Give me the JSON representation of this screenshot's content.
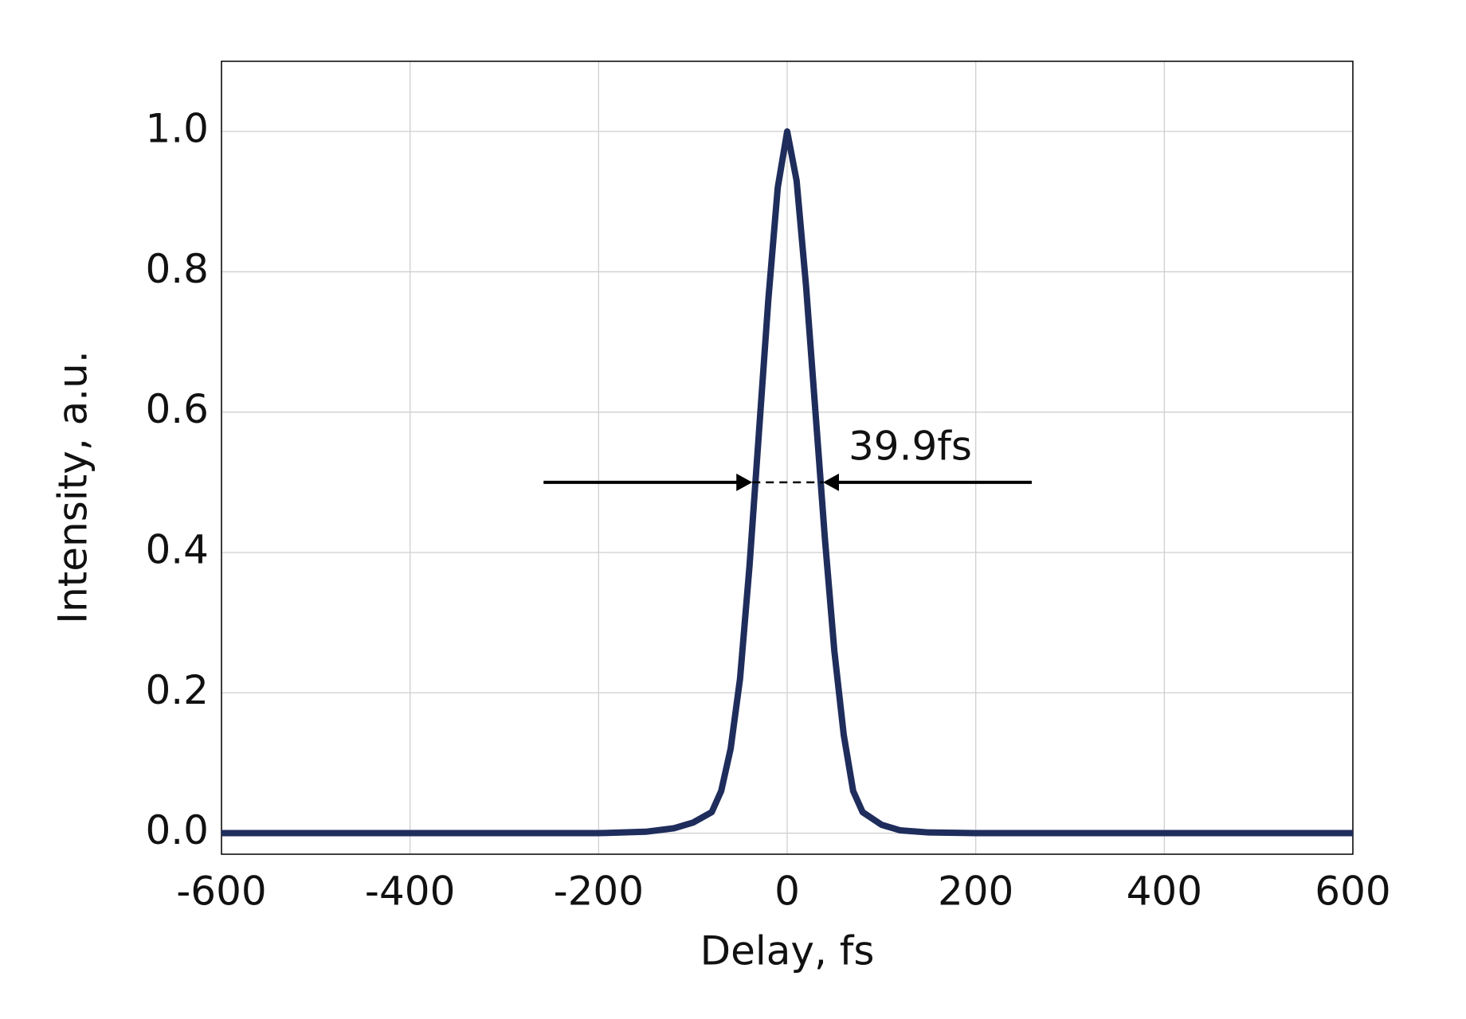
{
  "chart_data": {
    "type": "line",
    "x_label": "Delay, fs",
    "y_label": "Intensity, a.u.",
    "x": [
      -600,
      -500,
      -400,
      -300,
      -200,
      -150,
      -120,
      -100,
      -80,
      -70,
      -60,
      -50,
      -40,
      -30,
      -20,
      -10,
      0,
      10,
      20,
      30,
      40,
      50,
      60,
      70,
      80,
      100,
      120,
      150,
      200,
      300,
      400,
      500,
      600
    ],
    "series": [
      {
        "color": "#1f2d5c",
        "values": [
          0,
          0,
          0,
          0,
          0,
          0.002,
          0.007,
          0.015,
          0.03,
          0.06,
          0.12,
          0.22,
          0.38,
          0.57,
          0.76,
          0.92,
          1.0,
          0.93,
          0.78,
          0.6,
          0.42,
          0.26,
          0.14,
          0.06,
          0.03,
          0.012,
          0.004,
          0.001,
          0,
          0,
          0,
          0,
          0
        ]
      }
    ],
    "xlim": [
      -600,
      600
    ],
    "ylim": [
      -0.03,
      1.1
    ],
    "xticks": [
      -600,
      -400,
      -200,
      0,
      200,
      400,
      600
    ],
    "yticks": [
      {
        "value": 0,
        "label": "0.0"
      },
      0.2,
      0.4,
      0.6,
      0.8,
      {
        "value": 1,
        "label": "1.0"
      }
    ],
    "grid": true,
    "annotation": {
      "text": "39.9fs",
      "y": 0.5,
      "from": -37,
      "to": 38
    }
  }
}
